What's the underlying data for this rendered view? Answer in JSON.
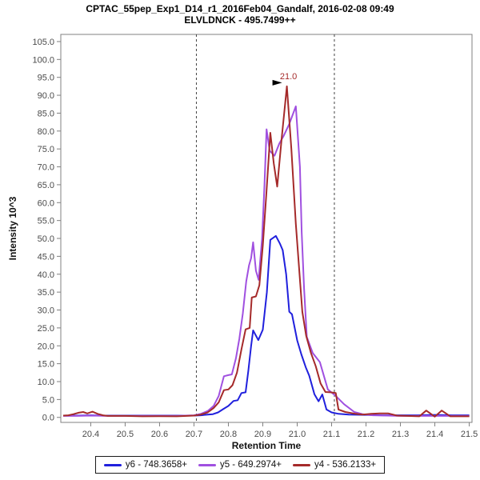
{
  "title": "CPTAC_55pep_Exp1_D14_r1_2016Feb04_Gandalf, 2016-02-08 09:49",
  "subtitle": "ELVLDNCK - 495.7499++",
  "chart_data": {
    "type": "line",
    "title": "CPTAC_55pep_Exp1_D14_r1_2016Feb04_Gandalf, 2016-02-08 09:49",
    "subtitle": "ELVLDNCK - 495.7499++",
    "xlabel": "Retention Time",
    "ylabel": "Intensity 10^3",
    "xlim": [
      20.313,
      21.508
    ],
    "ylim": [
      -1.4,
      107.0
    ],
    "x_ticks": [
      20.4,
      20.5,
      20.6,
      20.7,
      20.8,
      20.9,
      21.0,
      21.1,
      21.2,
      21.3,
      21.4,
      21.5
    ],
    "y_ticks": [
      0.0,
      5.0,
      10.0,
      15.0,
      20.0,
      25.0,
      30.0,
      35.0,
      40.0,
      45.0,
      50.0,
      55.0,
      60.0,
      65.0,
      70.0,
      75.0,
      80.0,
      85.0,
      90.0,
      95.0,
      100.0,
      105.0
    ],
    "grid": false,
    "legend_position": "bottom",
    "integration_boundaries": [
      20.707,
      21.108
    ],
    "boundary_color": "#444444",
    "frame_color": "#808080",
    "tick_label_color": "#4a4a4a",
    "peak_annotation": {
      "label": "21.0",
      "rt": 20.97,
      "value": 92.5,
      "color": "#A52A2A",
      "arrow": "black-right-triangle"
    },
    "series": [
      {
        "name": "y6 - 748.3658+",
        "color": "#2020dd",
        "points": [
          [
            20.32,
            0.5
          ],
          [
            20.36,
            0.5
          ],
          [
            20.4,
            0.6
          ],
          [
            20.44,
            0.5
          ],
          [
            20.48,
            0.5
          ],
          [
            20.52,
            0.5
          ],
          [
            20.56,
            0.5
          ],
          [
            20.6,
            0.5
          ],
          [
            20.64,
            0.5
          ],
          [
            20.68,
            0.5
          ],
          [
            20.7,
            0.5
          ],
          [
            20.72,
            0.6
          ],
          [
            20.74,
            0.8
          ],
          [
            20.755,
            0.9
          ],
          [
            20.77,
            1.4
          ],
          [
            20.785,
            2.3
          ],
          [
            20.8,
            3.2
          ],
          [
            20.815,
            4.6
          ],
          [
            20.827,
            4.8
          ],
          [
            20.838,
            6.8
          ],
          [
            20.85,
            7.0
          ],
          [
            20.858,
            13.0
          ],
          [
            20.866,
            20.0
          ],
          [
            20.872,
            24.3
          ],
          [
            20.887,
            21.6
          ],
          [
            20.9,
            24.5
          ],
          [
            20.912,
            35.0
          ],
          [
            20.922,
            49.6
          ],
          [
            20.938,
            50.7
          ],
          [
            20.95,
            48.5
          ],
          [
            20.958,
            46.7
          ],
          [
            20.968,
            40.0
          ],
          [
            20.977,
            29.5
          ],
          [
            20.985,
            28.8
          ],
          [
            21.0,
            21.5
          ],
          [
            21.012,
            17.6
          ],
          [
            21.025,
            14.0
          ],
          [
            21.035,
            11.6
          ],
          [
            21.05,
            6.5
          ],
          [
            21.062,
            4.5
          ],
          [
            21.073,
            6.4
          ],
          [
            21.085,
            2.2
          ],
          [
            21.1,
            1.4
          ],
          [
            21.12,
            1.0
          ],
          [
            21.15,
            0.8
          ],
          [
            21.2,
            0.7
          ],
          [
            21.25,
            0.6
          ],
          [
            21.3,
            0.6
          ],
          [
            21.35,
            0.6
          ],
          [
            21.4,
            0.7
          ],
          [
            21.45,
            0.6
          ],
          [
            21.5,
            0.6
          ]
        ]
      },
      {
        "name": "y5 - 649.2974+",
        "color": "#a050e0",
        "points": [
          [
            20.32,
            0.4
          ],
          [
            20.36,
            0.4
          ],
          [
            20.4,
            0.5
          ],
          [
            20.45,
            0.4
          ],
          [
            20.5,
            0.4
          ],
          [
            20.55,
            0.4
          ],
          [
            20.6,
            0.4
          ],
          [
            20.65,
            0.4
          ],
          [
            20.7,
            0.6
          ],
          [
            20.72,
            1.0
          ],
          [
            20.74,
            1.8
          ],
          [
            20.757,
            3.2
          ],
          [
            20.772,
            6.0
          ],
          [
            20.787,
            11.5
          ],
          [
            20.8,
            11.8
          ],
          [
            20.81,
            12.0
          ],
          [
            20.822,
            16.5
          ],
          [
            20.832,
            22.0
          ],
          [
            20.842,
            29.0
          ],
          [
            20.852,
            38.0
          ],
          [
            20.86,
            42.5
          ],
          [
            20.866,
            44.5
          ],
          [
            20.872,
            48.9
          ],
          [
            20.88,
            41.0
          ],
          [
            20.888,
            38.4
          ],
          [
            20.898,
            50.0
          ],
          [
            20.905,
            65.0
          ],
          [
            20.911,
            80.5
          ],
          [
            20.92,
            74.5
          ],
          [
            20.934,
            73.1
          ],
          [
            20.948,
            76.5
          ],
          [
            20.961,
            78.7
          ],
          [
            20.977,
            82.0
          ],
          [
            20.996,
            86.9
          ],
          [
            21.008,
            70.0
          ],
          [
            21.013,
            51.8
          ],
          [
            21.02,
            36.0
          ],
          [
            21.028,
            22.5
          ],
          [
            21.045,
            18.0
          ],
          [
            21.066,
            15.4
          ],
          [
            21.089,
            7.8
          ],
          [
            21.112,
            6.0
          ],
          [
            21.136,
            3.7
          ],
          [
            21.166,
            1.5
          ],
          [
            21.19,
            0.9
          ],
          [
            21.22,
            0.6
          ],
          [
            21.26,
            0.5
          ],
          [
            21.3,
            0.4
          ],
          [
            21.35,
            0.4
          ],
          [
            21.4,
            0.4
          ],
          [
            21.45,
            0.4
          ],
          [
            21.5,
            0.4
          ]
        ]
      },
      {
        "name": "y4 - 536.2133+",
        "color": "#a52a2a",
        "points": [
          [
            20.32,
            0.5
          ],
          [
            20.335,
            0.6
          ],
          [
            20.35,
            0.9
          ],
          [
            20.365,
            1.3
          ],
          [
            20.378,
            1.5
          ],
          [
            20.39,
            1.1
          ],
          [
            20.405,
            1.6
          ],
          [
            20.42,
            1.0
          ],
          [
            20.435,
            0.6
          ],
          [
            20.45,
            0.4
          ],
          [
            20.5,
            0.4
          ],
          [
            20.55,
            0.3
          ],
          [
            20.6,
            0.35
          ],
          [
            20.65,
            0.3
          ],
          [
            20.7,
            0.5
          ],
          [
            20.72,
            0.8
          ],
          [
            20.74,
            1.4
          ],
          [
            20.757,
            2.6
          ],
          [
            20.772,
            4.2
          ],
          [
            20.787,
            7.6
          ],
          [
            20.8,
            7.8
          ],
          [
            20.812,
            9.0
          ],
          [
            20.825,
            12.5
          ],
          [
            20.838,
            19.0
          ],
          [
            20.85,
            24.6
          ],
          [
            20.862,
            25.0
          ],
          [
            20.868,
            33.5
          ],
          [
            20.88,
            33.8
          ],
          [
            20.89,
            36.9
          ],
          [
            20.9,
            48.0
          ],
          [
            20.91,
            62.0
          ],
          [
            20.922,
            79.5
          ],
          [
            20.932,
            71.0
          ],
          [
            20.942,
            64.5
          ],
          [
            20.955,
            78.0
          ],
          [
            20.97,
            92.5
          ],
          [
            20.983,
            75.0
          ],
          [
            20.996,
            54.0
          ],
          [
            21.015,
            29.5
          ],
          [
            21.026,
            22.8
          ],
          [
            21.04,
            18.0
          ],
          [
            21.054,
            14.3
          ],
          [
            21.068,
            9.5
          ],
          [
            21.082,
            7.1
          ],
          [
            21.097,
            7.0
          ],
          [
            21.112,
            6.8
          ],
          [
            21.12,
            2.2
          ],
          [
            21.14,
            1.5
          ],
          [
            21.17,
            1.0
          ],
          [
            21.19,
            0.8
          ],
          [
            21.215,
            1.0
          ],
          [
            21.24,
            1.1
          ],
          [
            21.265,
            1.1
          ],
          [
            21.29,
            0.5
          ],
          [
            21.32,
            0.4
          ],
          [
            21.355,
            0.3
          ],
          [
            21.375,
            1.9
          ],
          [
            21.4,
            0.2
          ],
          [
            21.42,
            1.9
          ],
          [
            21.445,
            0.3
          ],
          [
            21.47,
            0.3
          ],
          [
            21.5,
            0.3
          ]
        ]
      }
    ]
  }
}
